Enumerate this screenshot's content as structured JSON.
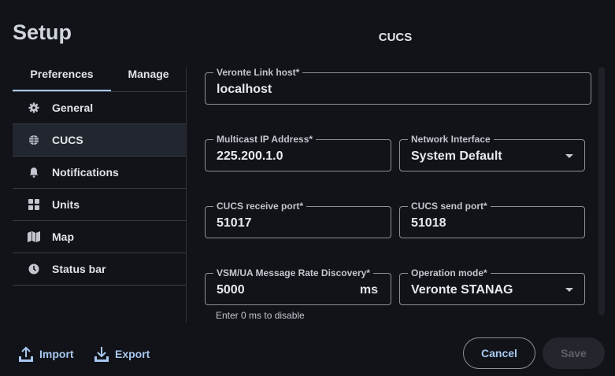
{
  "title": "Setup",
  "section_title": "CUCS",
  "tabs": [
    {
      "label": "Preferences",
      "active": true
    },
    {
      "label": "Manage",
      "active": false
    }
  ],
  "nav": [
    {
      "label": "General",
      "icon": "gear-icon"
    },
    {
      "label": "CUCS",
      "icon": "globe-icon",
      "selected": true
    },
    {
      "label": "Notifications",
      "icon": "bell-icon"
    },
    {
      "label": "Units",
      "icon": "grid-icon"
    },
    {
      "label": "Map",
      "icon": "map-icon"
    },
    {
      "label": "Status bar",
      "icon": "clock-icon"
    }
  ],
  "fields": {
    "host": {
      "label": "Veronte Link host*",
      "value": "localhost"
    },
    "multicast": {
      "label": "Multicast IP Address*",
      "value": "225.200.1.0"
    },
    "interface": {
      "label": "Network Interface",
      "value": "System Default"
    },
    "recv": {
      "label": "CUCS receive port*",
      "value": "51017"
    },
    "send": {
      "label": "CUCS send port*",
      "value": "51018"
    },
    "rate": {
      "label": "VSM/UA Message Rate Discovery*",
      "value": "5000",
      "unit": "ms",
      "helper": "Enter 0 ms to disable"
    },
    "mode": {
      "label": "Operation mode*",
      "value": "Veronte STANAG"
    }
  },
  "footer": {
    "import": "Import",
    "export": "Export",
    "cancel": "Cancel",
    "save": "Save"
  },
  "colors": {
    "accent": "#a8c8f0",
    "background": "#111318",
    "selected": "#22272f"
  }
}
